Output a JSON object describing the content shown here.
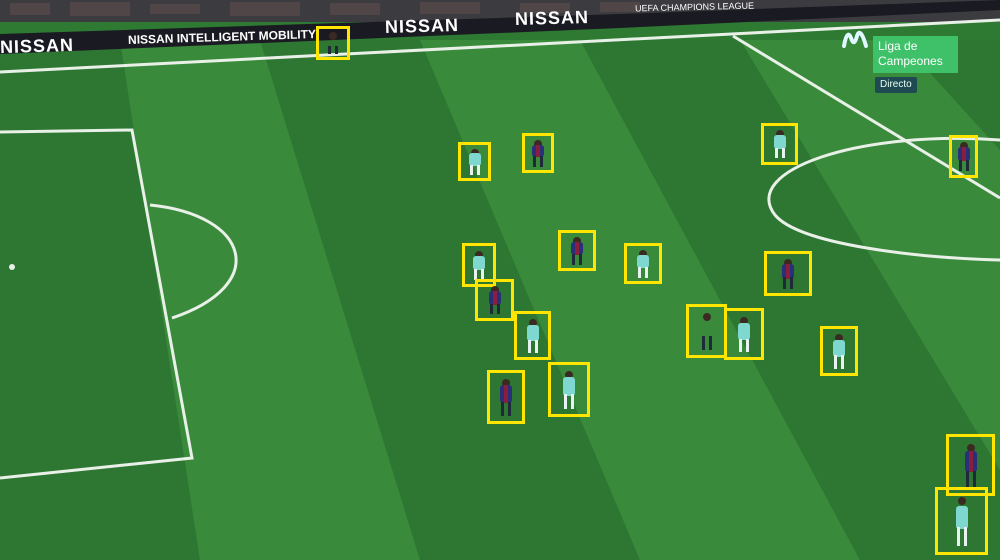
{
  "broadcast": {
    "channel_logo": "movistar-m-icon",
    "competition": "Liga de Campeones",
    "status": "Directo"
  },
  "hoardings": {
    "sponsor": "NISSAN",
    "sponsor_slogan": "NISSAN INTELLIGENT MOBILITY",
    "competition": "UEFA CHAMPIONS LEAGUE"
  },
  "colors": {
    "grass_dark": "#2c7532",
    "grass_light": "#3b8b3c",
    "box_outline": "#ffe500",
    "home_kit": "#2a2f7a",
    "away_kit": "#7fd8cf",
    "referee_kit": "#e0488b",
    "badge_green": "#3fc16a"
  },
  "detections": [
    {
      "kit": "referee"
    },
    {
      "kit": "away"
    },
    {
      "kit": "home"
    },
    {
      "kit": "away"
    },
    {
      "kit": "home"
    },
    {
      "kit": "away"
    },
    {
      "kit": "home"
    },
    {
      "kit": "away"
    },
    {
      "kit": "home"
    },
    {
      "kit": "home"
    },
    {
      "kit": "away"
    },
    {
      "kit": "referee"
    },
    {
      "kit": "away"
    },
    {
      "kit": "away"
    },
    {
      "kit": "home"
    },
    {
      "kit": "away"
    },
    {
      "kit": "home"
    },
    {
      "kit": "away"
    }
  ]
}
